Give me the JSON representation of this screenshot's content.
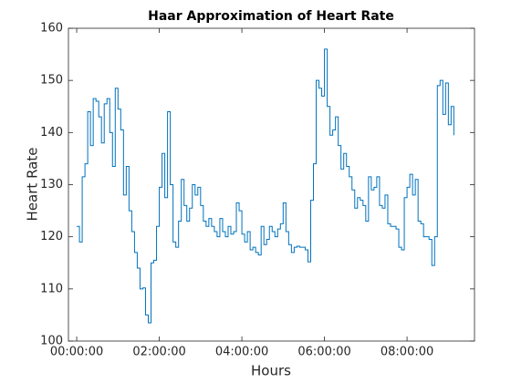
{
  "chart_data": {
    "type": "stairs",
    "title": "Haar Approximation of Heart Rate",
    "x_label": "Hours",
    "y_label": "Heart Rate",
    "color": "#0072bd",
    "xlim": [
      -12,
      578
    ],
    "ylim": [
      100,
      160
    ],
    "xticks": [
      {
        "value": 0,
        "label": "00:00:00"
      },
      {
        "value": 120,
        "label": "02:00:00"
      },
      {
        "value": 240,
        "label": "04:00:00"
      },
      {
        "value": 360,
        "label": "06:00:00"
      },
      {
        "value": 480,
        "label": "08:00:00"
      }
    ],
    "yticks": [
      100,
      110,
      120,
      130,
      140,
      150,
      160
    ],
    "x": [
      0,
      4,
      8,
      12,
      16,
      20,
      24,
      28,
      32,
      36,
      40,
      44,
      48,
      52,
      56,
      60,
      64,
      68,
      72,
      76,
      80,
      84,
      88,
      92,
      96,
      100,
      104,
      108,
      112,
      116,
      120,
      124,
      128,
      132,
      136,
      140,
      144,
      148,
      152,
      156,
      160,
      164,
      168,
      172,
      176,
      180,
      184,
      188,
      192,
      196,
      200,
      204,
      208,
      212,
      216,
      220,
      224,
      228,
      232,
      236,
      240,
      244,
      248,
      252,
      256,
      260,
      264,
      268,
      272,
      276,
      280,
      284,
      288,
      292,
      296,
      300,
      304,
      308,
      312,
      316,
      320,
      324,
      328,
      332,
      336,
      340,
      344,
      348,
      352,
      356,
      360,
      364,
      368,
      372,
      376,
      380,
      384,
      388,
      392,
      396,
      400,
      404,
      408,
      412,
      416,
      420,
      424,
      428,
      432,
      436,
      440,
      444,
      448,
      452,
      456,
      460,
      464,
      468,
      472,
      476,
      480,
      484,
      488,
      492,
      496,
      500,
      504,
      508,
      512,
      516,
      520,
      524,
      528,
      532,
      536,
      540,
      544,
      548
    ],
    "values": [
      122,
      119,
      131.5,
      134,
      144,
      137.5,
      146.5,
      146,
      143,
      138,
      145.5,
      146.5,
      140,
      133.5,
      148.5,
      144.5,
      140.5,
      128,
      133.5,
      125,
      121,
      117,
      114,
      110,
      110.2,
      105,
      103.5,
      115,
      115.5,
      122,
      129.5,
      136,
      127.5,
      144,
      130,
      119,
      118,
      123,
      131,
      126,
      123,
      125.5,
      130,
      128,
      129.5,
      126,
      123,
      122,
      123.5,
      122,
      121,
      120,
      123.5,
      121,
      120,
      122,
      120.5,
      121,
      126.5,
      125,
      120.5,
      119,
      121,
      117.5,
      118,
      117,
      116.5,
      122,
      118.5,
      119.5,
      122,
      121,
      120,
      121.5,
      122.5,
      126.5,
      121,
      118.5,
      117,
      118,
      118.2,
      118,
      118,
      117.5,
      115.2,
      127,
      134,
      150,
      148.5,
      147,
      156,
      145,
      139.5,
      140.5,
      143,
      137.5,
      133,
      136,
      133.5,
      131.5,
      129,
      125.5,
      127.5,
      127,
      126,
      123,
      131.5,
      129,
      129.5,
      131.5,
      126,
      125.5,
      128,
      122.5,
      122,
      122,
      121.5,
      118,
      117.5,
      127.5,
      129.5,
      132,
      128,
      131,
      123,
      122.5,
      120,
      120,
      119.5,
      114.5,
      120,
      149,
      150,
      143.5,
      149.5,
      141.5,
      145,
      139.5
    ]
  }
}
